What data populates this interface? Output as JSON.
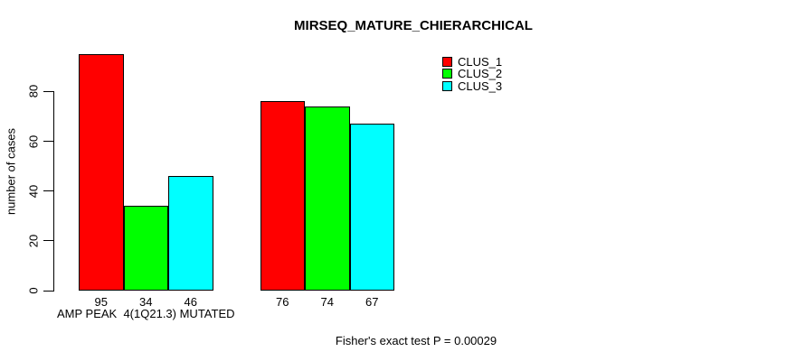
{
  "chart_data": {
    "type": "bar",
    "title": "MIRSEQ_MATURE_CHIERARCHICAL",
    "ylabel": "number of cases",
    "xlabel": "",
    "categories": [
      "AMP PEAK  4(1Q21.3) MUTATED",
      ""
    ],
    "series": [
      {
        "name": "CLUS_1",
        "color": "#ff0000",
        "values": [
          95,
          76
        ]
      },
      {
        "name": "CLUS_2",
        "color": "#00ff00",
        "values": [
          34,
          74
        ]
      },
      {
        "name": "CLUS_3",
        "color": "#00ffff",
        "values": [
          46,
          67
        ]
      }
    ],
    "y_ticks": [
      0,
      20,
      40,
      60,
      80
    ],
    "ylim": [
      0,
      95
    ],
    "grid": false,
    "legend_position": "top-right",
    "bar_value_labels_shown": true,
    "footnote": "Fisher's exact test P = 0.00029"
  }
}
